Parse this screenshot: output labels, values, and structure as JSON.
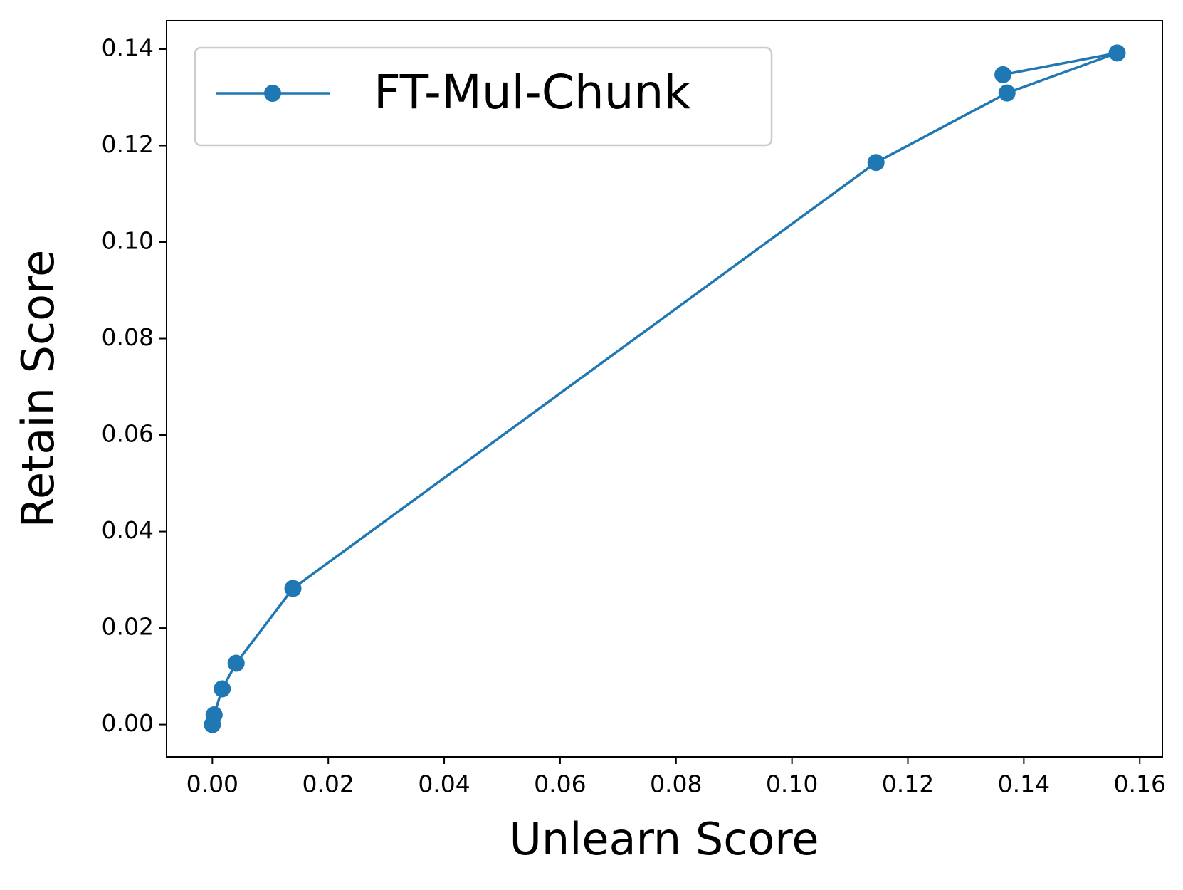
{
  "chart_data": {
    "type": "line",
    "x_label": "Unlearn Score",
    "y_label": "Retain Score",
    "xlim": [
      -0.0079,
      0.1639
    ],
    "ylim": [
      -0.0067,
      0.1459
    ],
    "xticks": [
      {
        "value": 0,
        "label": "0.00"
      },
      {
        "value": 0.02,
        "label": "0.02"
      },
      {
        "value": 0.04,
        "label": "0.04"
      },
      {
        "value": 0.06,
        "label": "0.06"
      },
      {
        "value": 0.08,
        "label": "0.08"
      },
      {
        "value": 0.1,
        "label": "0.10"
      },
      {
        "value": 0.12,
        "label": "0.12"
      },
      {
        "value": 0.14,
        "label": "0.14"
      },
      {
        "value": 0.16,
        "label": "0.16"
      }
    ],
    "yticks": [
      {
        "value": 0,
        "label": "0.00"
      },
      {
        "value": 0.02,
        "label": "0.02"
      },
      {
        "value": 0.04,
        "label": "0.04"
      },
      {
        "value": 0.06,
        "label": "0.06"
      },
      {
        "value": 0.08,
        "label": "0.08"
      },
      {
        "value": 0.1,
        "label": "0.10"
      },
      {
        "value": 0.12,
        "label": "0.12"
      },
      {
        "value": 0.14,
        "label": "0.14"
      }
    ],
    "legend": "upper left",
    "series": [
      {
        "name": "FT-Mul-Chunk",
        "color": "#1f77b4",
        "x": [
          0,
          0.0003,
          0.0017,
          0.0041,
          0.0139,
          0.1145,
          0.1371,
          0.1561,
          0.1364
        ],
        "values": [
          0,
          0.002,
          0.0074,
          0.0127,
          0.0282,
          0.1165,
          0.1309,
          0.1392,
          0.1347
        ]
      }
    ]
  }
}
